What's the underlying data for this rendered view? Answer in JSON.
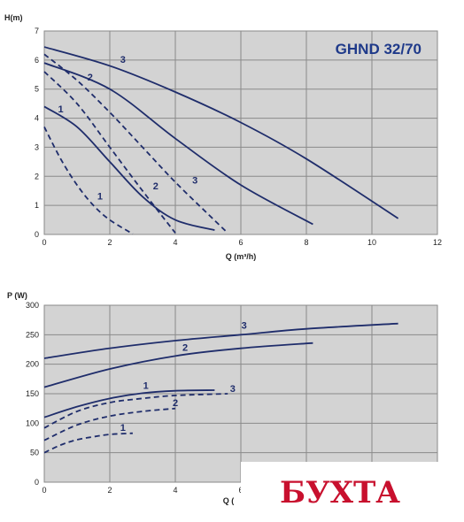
{
  "chart_data": [
    {
      "type": "line",
      "title": "GHND 32/70",
      "ylabel": "H(m)",
      "xlabel": "Q (m³/h)",
      "xlim": [
        0,
        12
      ],
      "ylim": [
        0,
        7
      ],
      "xticks": [
        "0",
        "2",
        "4",
        "6",
        "8",
        "10",
        "12"
      ],
      "yticks": [
        "0",
        "1",
        "2",
        "3",
        "4",
        "5",
        "6",
        "7"
      ],
      "grid": true,
      "colors": {
        "background": "#d3d3d3",
        "line": "#1f2d6b",
        "grid": "#8a8a8a"
      },
      "series": [
        {
          "label": "3",
          "style": "solid",
          "x": [
            0,
            2,
            4,
            6,
            8,
            10.8
          ],
          "y": [
            6.45,
            5.8,
            4.9,
            3.85,
            2.6,
            0.55
          ],
          "label_at": [
            2.4,
            5.9
          ]
        },
        {
          "label": "2",
          "style": "solid",
          "x": [
            0,
            2,
            4,
            6,
            8.2
          ],
          "y": [
            5.9,
            5.0,
            3.3,
            1.7,
            0.35
          ],
          "label_at": [
            1.4,
            5.3
          ]
        },
        {
          "label": "1",
          "style": "solid",
          "x": [
            0,
            1,
            2,
            3,
            4,
            5.2
          ],
          "y": [
            4.4,
            3.7,
            2.5,
            1.3,
            0.5,
            0.15
          ],
          "label_at": [
            0.5,
            4.2
          ]
        },
        {
          "label": "3",
          "style": "dashed",
          "x": [
            0,
            1,
            2,
            3,
            4,
            5,
            5.6
          ],
          "y": [
            6.2,
            5.3,
            4.2,
            3.0,
            1.8,
            0.7,
            0.05
          ],
          "label_at": [
            4.6,
            1.75
          ]
        },
        {
          "label": "2",
          "style": "dashed",
          "x": [
            0,
            1,
            2,
            3,
            4
          ],
          "y": [
            5.6,
            4.5,
            3.0,
            1.5,
            0.05
          ],
          "label_at": [
            3.4,
            1.55
          ]
        },
        {
          "label": "1",
          "style": "dashed",
          "x": [
            0,
            0.5,
            1,
            1.5,
            2,
            2.7
          ],
          "y": [
            3.7,
            2.6,
            1.7,
            1.0,
            0.5,
            0.02
          ],
          "label_at": [
            1.7,
            1.2
          ]
        }
      ]
    },
    {
      "type": "line",
      "ylabel": "P (W)",
      "xlabel": "Q (",
      "xlim": [
        0,
        12
      ],
      "ylim": [
        0,
        300
      ],
      "xticks": [
        "0",
        "2",
        "4",
        "6"
      ],
      "yticks": [
        "0",
        "50",
        "100",
        "150",
        "200",
        "250",
        "300"
      ],
      "grid": true,
      "colors": {
        "background": "#d3d3d3",
        "line": "#1f2d6b",
        "grid": "#8a8a8a"
      },
      "series": [
        {
          "label": "3",
          "style": "solid",
          "x": [
            0,
            2,
            4,
            6,
            8,
            10.8
          ],
          "y": [
            210,
            227,
            240,
            250,
            260,
            269
          ],
          "label_at": [
            6.1,
            260
          ]
        },
        {
          "label": "2",
          "style": "solid",
          "x": [
            0,
            2,
            4,
            6,
            8.2
          ],
          "y": [
            161,
            192,
            214,
            227,
            236
          ],
          "label_at": [
            4.3,
            223
          ]
        },
        {
          "label": "1",
          "style": "solid",
          "x": [
            0,
            1,
            2,
            3,
            4,
            5.2
          ],
          "y": [
            110,
            128,
            142,
            151,
            155,
            156
          ],
          "label_at": [
            3.1,
            158
          ]
        },
        {
          "label": "3",
          "style": "dashed",
          "x": [
            0,
            1,
            2,
            3,
            4,
            5.6
          ],
          "y": [
            92,
            120,
            135,
            142,
            147,
            150
          ],
          "label_at": [
            5.75,
            153
          ]
        },
        {
          "label": "2",
          "style": "dashed",
          "x": [
            0,
            1,
            2,
            3,
            4
          ],
          "y": [
            71,
            97,
            112,
            120,
            125
          ],
          "label_at": [
            4.0,
            129
          ]
        },
        {
          "label": "1",
          "style": "dashed",
          "x": [
            0,
            0.5,
            1,
            1.5,
            2,
            2.7
          ],
          "y": [
            50,
            63,
            72,
            77,
            81,
            83
          ],
          "label_at": [
            2.4,
            87
          ]
        }
      ]
    }
  ],
  "watermark": {
    "text": "БУХТА",
    "color": "#c8102e"
  }
}
